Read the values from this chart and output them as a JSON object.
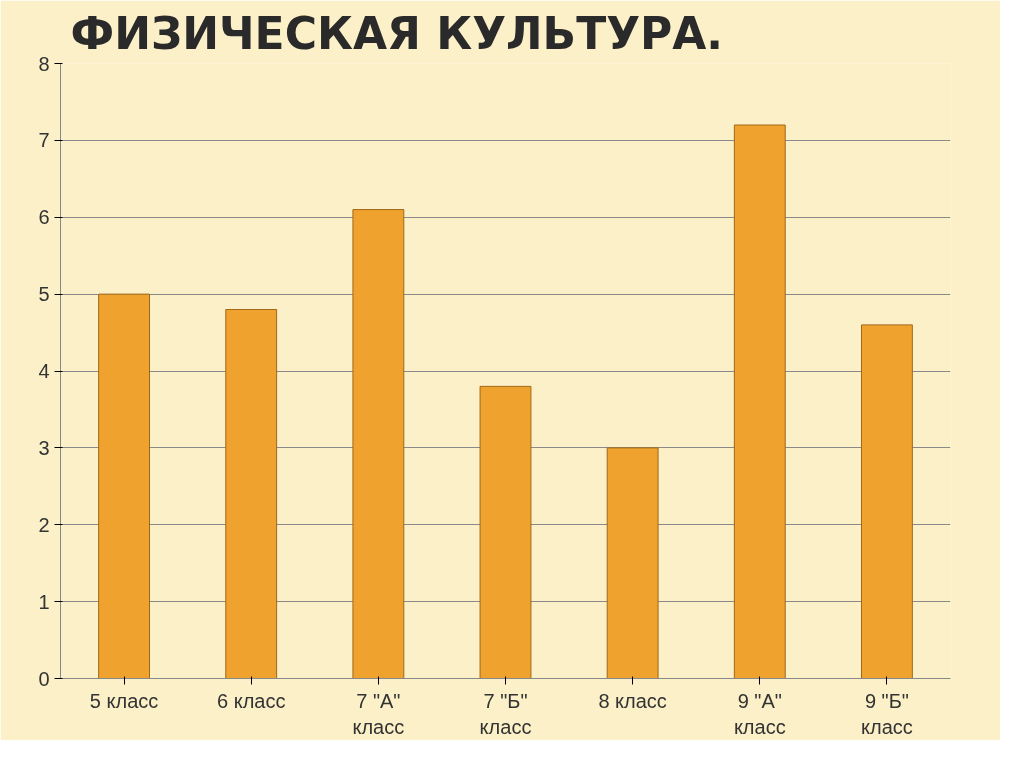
{
  "chart_data": {
    "type": "bar",
    "title": "ФИЗИЧЕСКАЯ КУЛЬТУРА.",
    "categories": [
      "5 класс",
      "6 класс",
      "7 \"А\" класс",
      "7 \"Б\" класс",
      "8 класс",
      "9 \"А\" класс",
      "9 \"Б\" класс"
    ],
    "values": [
      5,
      4.8,
      6.1,
      3.8,
      3,
      7.2,
      4.6
    ],
    "color": "#f0a22e",
    "ylim": [
      0,
      8
    ],
    "yticks": [
      0,
      1,
      2,
      3,
      4,
      5,
      6,
      7,
      8
    ],
    "grid": "y"
  }
}
